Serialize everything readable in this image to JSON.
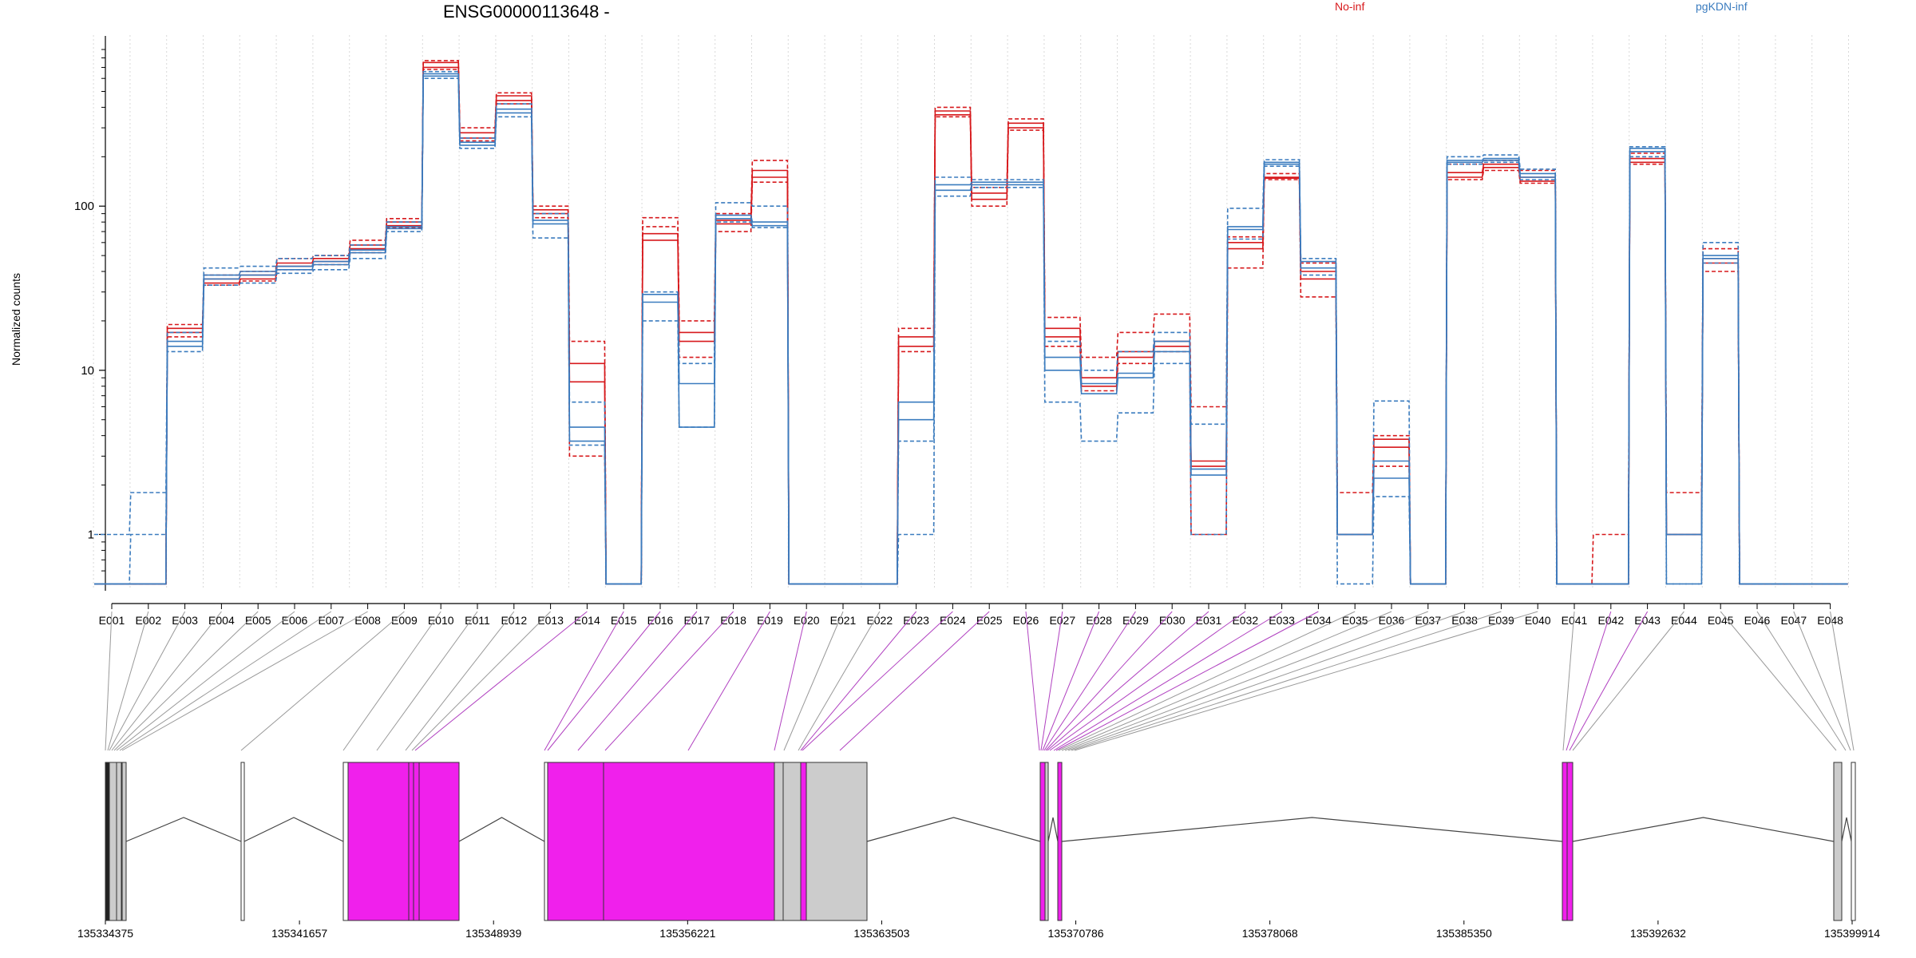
{
  "chart_data": {
    "type": "line",
    "title": "ENSG00000113648 -",
    "ylabel": "Normalized counts",
    "yscale": "log",
    "ylim": [
      0.48,
      900
    ],
    "yticks": [
      "1",
      "10",
      "100"
    ],
    "grid": true,
    "legend": [
      {
        "name": "No-inf",
        "color": "#d7191c"
      },
      {
        "name": "pgKDN-inf",
        "color": "#3b7cbf"
      }
    ],
    "categories": [
      "E001",
      "E002",
      "E003",
      "E004",
      "E005",
      "E006",
      "E007",
      "E008",
      "E009",
      "E010",
      "E011",
      "E012",
      "E013",
      "E014",
      "E015",
      "E016",
      "E017",
      "E018",
      "E019",
      "E020",
      "E021",
      "E022",
      "E023",
      "E024",
      "E025",
      "E026",
      "E027",
      "E028",
      "E029",
      "E030",
      "E031",
      "E032",
      "E033",
      "E034",
      "E035",
      "E036",
      "E037",
      "E038",
      "E039",
      "E040",
      "E041",
      "E042",
      "E043",
      "E044",
      "E045",
      "E046",
      "E047",
      "E048"
    ],
    "series": [
      {
        "group": 0,
        "dashed": false,
        "values": [
          0.5,
          0.5,
          18,
          36,
          38,
          45,
          48,
          58,
          80,
          750,
          280,
          470,
          95,
          11,
          0.5,
          68,
          17,
          82,
          165,
          0.5,
          0.5,
          0.5,
          16,
          380,
          120,
          320,
          18,
          9,
          13,
          15,
          2.8,
          60,
          150,
          40,
          1,
          3.8,
          0.5,
          160,
          180,
          150,
          0.5,
          0.5,
          195,
          1,
          48,
          0.5,
          0.5,
          0.5
        ]
      },
      {
        "group": 0,
        "dashed": false,
        "values": [
          0.5,
          0.5,
          17,
          34,
          36,
          43,
          46,
          55,
          76,
          700,
          260,
          440,
          90,
          8.5,
          0.5,
          62,
          15,
          78,
          150,
          0.5,
          0.5,
          0.5,
          14,
          360,
          110,
          300,
          16,
          8,
          12,
          14,
          2.6,
          55,
          148,
          36,
          1,
          3.4,
          0.5,
          150,
          172,
          142,
          0.5,
          0.5,
          185,
          1,
          45,
          0.5,
          0.5,
          0.5
        ]
      },
      {
        "group": 0,
        "dashed": true,
        "values": [
          0.5,
          0.5,
          19,
          38,
          40,
          48,
          50,
          62,
          84,
          770,
          300,
          490,
          100,
          15,
          0.5,
          85,
          20,
          90,
          190,
          0.5,
          0.5,
          0.5,
          18,
          400,
          130,
          340,
          21,
          12,
          17,
          22,
          6,
          65,
          158,
          45,
          1.8,
          4,
          0.5,
          180,
          190,
          165,
          0.5,
          1,
          210,
          1.8,
          55,
          0.5,
          0.5,
          0.5
        ]
      },
      {
        "group": 0,
        "dashed": true,
        "values": [
          0.5,
          0.5,
          16,
          33,
          35,
          41,
          44,
          52,
          74,
          680,
          250,
          420,
          85,
          3,
          0.5,
          75,
          12,
          70,
          140,
          0.5,
          0.5,
          0.5,
          13,
          350,
          100,
          290,
          14,
          7.5,
          11,
          13,
          1,
          42,
          145,
          28,
          1,
          2.6,
          0.5,
          145,
          165,
          138,
          0.5,
          0.5,
          180,
          1,
          40,
          0.5,
          0.5,
          0.5
        ]
      },
      {
        "group": 1,
        "dashed": false,
        "values": [
          0.5,
          0.5,
          15,
          38,
          40,
          43,
          46,
          54,
          75,
          640,
          245,
          390,
          82,
          3.7,
          0.5,
          29,
          4.5,
          88,
          80,
          0.5,
          0.5,
          0.5,
          6.4,
          135,
          140,
          140,
          12,
          8.3,
          9.6,
          15,
          2.5,
          75,
          185,
          46,
          1,
          2.8,
          0.5,
          190,
          195,
          158,
          0.5,
          0.5,
          225,
          1,
          50,
          0.5,
          0.5,
          0.5
        ]
      },
      {
        "group": 1,
        "dashed": false,
        "values": [
          0.5,
          0.5,
          14,
          36,
          38,
          41,
          44,
          52,
          73,
          620,
          235,
          370,
          78,
          4.5,
          0.5,
          26,
          8.3,
          84,
          76,
          0.5,
          0.5,
          0.5,
          5,
          125,
          135,
          135,
          10,
          7.2,
          9,
          13,
          2.3,
          72,
          180,
          42,
          1,
          2.2,
          0.5,
          185,
          190,
          150,
          0.5,
          0.5,
          215,
          1,
          48,
          0.5,
          0.5,
          0.5
        ]
      },
      {
        "group": 1,
        "dashed": true,
        "values": [
          1,
          1.8,
          17,
          42,
          43,
          48,
          50,
          58,
          80,
          660,
          260,
          420,
          90,
          6.4,
          0.5,
          30,
          11,
          105,
          100,
          0.5,
          0.5,
          0.5,
          3.7,
          150,
          145,
          145,
          15,
          10,
          13,
          17,
          4.7,
          97,
          192,
          48,
          1,
          6.5,
          0.5,
          200,
          205,
          168,
          0.5,
          0.5,
          230,
          0.5,
          60,
          0.5,
          0.5,
          0.5
        ]
      },
      {
        "group": 1,
        "dashed": true,
        "values": [
          0.5,
          1,
          13,
          33,
          34,
          39,
          41,
          48,
          70,
          600,
          225,
          350,
          64,
          3.5,
          0.5,
          20,
          4.5,
          80,
          74,
          0.5,
          0.5,
          0.5,
          1,
          115,
          130,
          130,
          6.4,
          3.7,
          5.5,
          11,
          1,
          63,
          175,
          38,
          0.5,
          1.7,
          0.5,
          180,
          185,
          145,
          0.5,
          0.5,
          200,
          0.5,
          45,
          0.5,
          0.5,
          0.5
        ]
      }
    ],
    "gene_model": {
      "coordinates": [
        "135334375",
        "135341657",
        "135348939",
        "135356221",
        "135363503",
        "135370786",
        "135378068",
        "135385350",
        "135392632",
        "135399914"
      ]
    }
  }
}
